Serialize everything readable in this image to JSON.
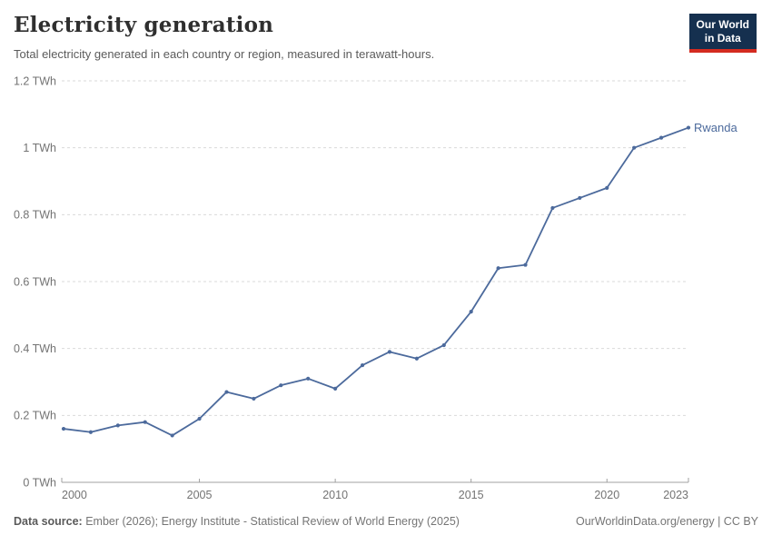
{
  "header": {
    "title": "Electricity generation",
    "subtitle": "Total electricity generated in each country or region, measured in terawatt-hours.",
    "logo": {
      "line1": "Our World",
      "line2": "in Data"
    }
  },
  "footer": {
    "source_label": "Data source:",
    "source_text": "Ember (2026); Energy Institute - Statistical Review of World Energy (2025)",
    "right_text": "OurWorldinData.org/energy | CC BY"
  },
  "colors": {
    "line": "#4c6a9c",
    "grid": "#dadada",
    "axis": "#a0a0a0",
    "tick_label": "#737373",
    "end_label": "#4c6a9c"
  },
  "chart_data": {
    "type": "line",
    "title": "Electricity generation",
    "unit": "TWh",
    "xlim": [
      2000,
      2023
    ],
    "ylim": [
      0,
      1.2
    ],
    "grid": "dashed-horizontal",
    "legend_position": "end-of-line-label",
    "x_ticks": [
      {
        "value": 2000,
        "label": "2000"
      },
      {
        "value": 2005,
        "label": "2005"
      },
      {
        "value": 2010,
        "label": "2010"
      },
      {
        "value": 2015,
        "label": "2015"
      },
      {
        "value": 2020,
        "label": "2020"
      },
      {
        "value": 2023,
        "label": "2023"
      }
    ],
    "y_ticks": [
      {
        "value": 0,
        "label": "0 TWh"
      },
      {
        "value": 0.2,
        "label": "0.2 TWh"
      },
      {
        "value": 0.4,
        "label": "0.4 TWh"
      },
      {
        "value": 0.6,
        "label": "0.6 TWh"
      },
      {
        "value": 0.8,
        "label": "0.8 TWh"
      },
      {
        "value": 1,
        "label": "1 TWh"
      },
      {
        "value": 1.2,
        "label": "1.2 TWh"
      }
    ],
    "series": [
      {
        "name": "Rwanda",
        "x": [
          2000,
          2001,
          2002,
          2003,
          2004,
          2005,
          2006,
          2007,
          2008,
          2009,
          2010,
          2011,
          2012,
          2013,
          2014,
          2015,
          2016,
          2017,
          2018,
          2019,
          2020,
          2021,
          2022,
          2023
        ],
        "values": [
          0.16,
          0.15,
          0.17,
          0.18,
          0.14,
          0.19,
          0.27,
          0.25,
          0.29,
          0.31,
          0.28,
          0.35,
          0.39,
          0.37,
          0.41,
          0.51,
          0.64,
          0.65,
          0.82,
          0.85,
          0.88,
          1.0,
          1.03,
          1.06
        ]
      }
    ]
  }
}
